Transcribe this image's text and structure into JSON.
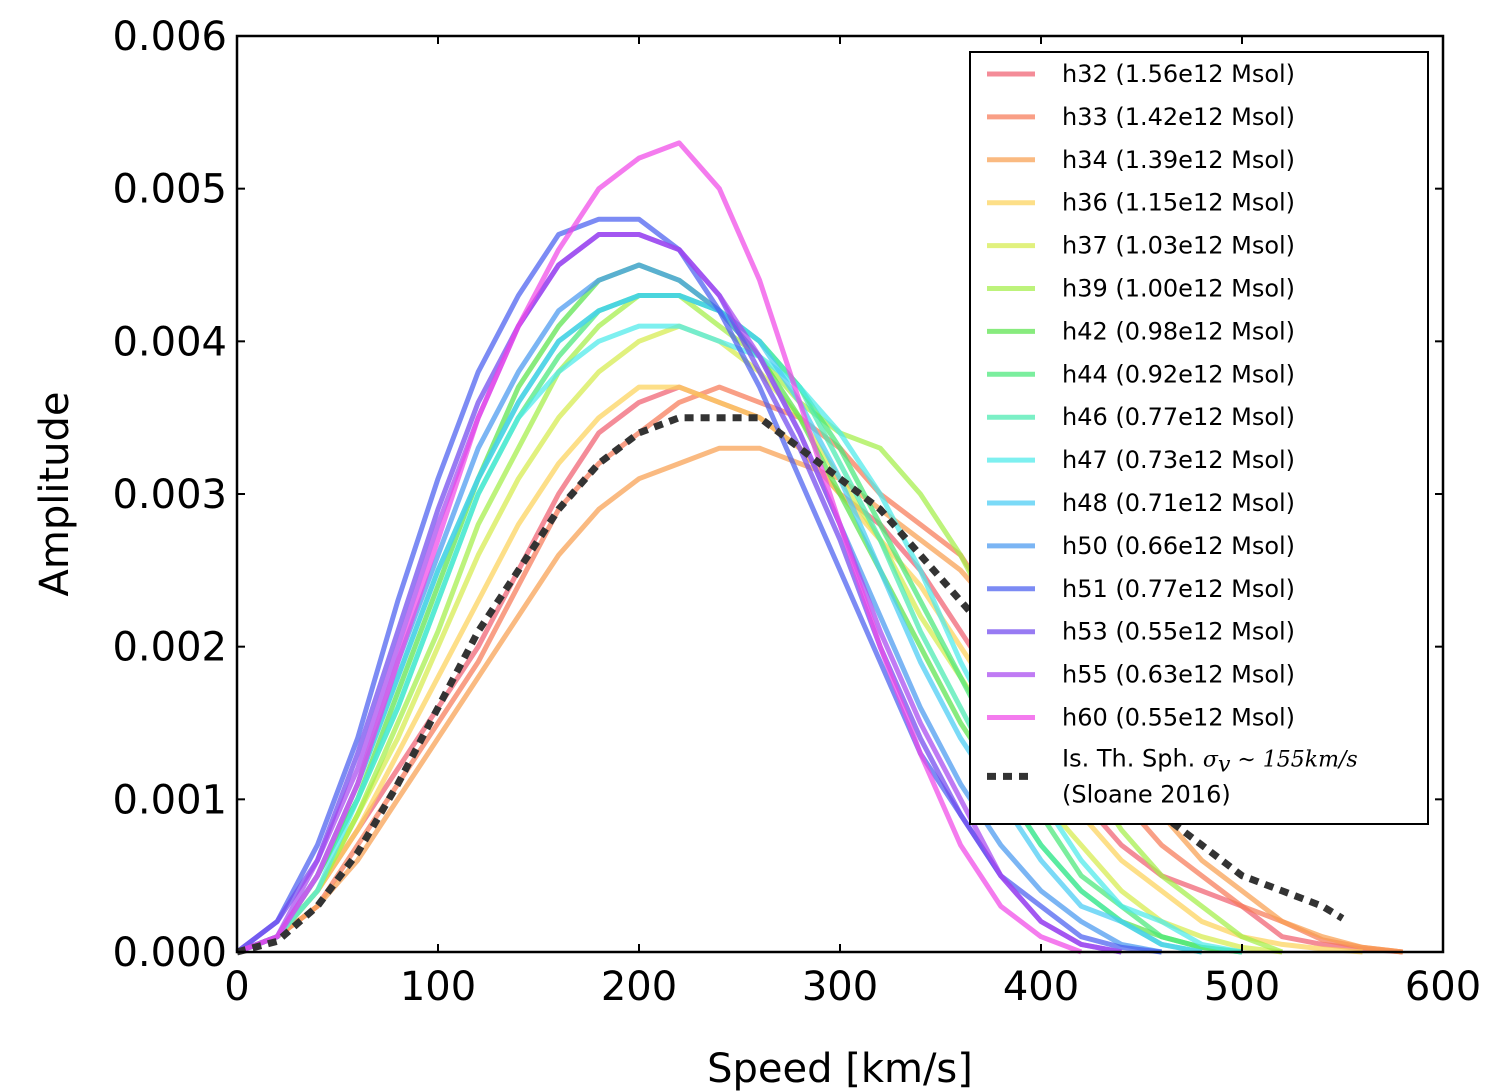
{
  "chart_data": {
    "type": "line",
    "title": "",
    "xlabel": "Speed [km/s]",
    "ylabel": "Amplitude",
    "xlim": [
      0,
      600
    ],
    "ylim": [
      0,
      0.006
    ],
    "xticks": [
      0,
      100,
      200,
      300,
      400,
      500,
      600
    ],
    "xtick_labels": [
      "0",
      "100",
      "200",
      "300",
      "400",
      "500",
      "600"
    ],
    "yticks": [
      0,
      0.001,
      0.002,
      0.003,
      0.004,
      0.005,
      0.006
    ],
    "ytick_labels": [
      "0.000",
      "0.001",
      "0.002",
      "0.003",
      "0.004",
      "0.005",
      "0.006"
    ],
    "grid": false,
    "legend_position": "top-right",
    "series": [
      {
        "name": "h32 (1.56e12 Msol)",
        "color": "#f06070",
        "x": [
          0,
          20,
          40,
          60,
          80,
          100,
          120,
          140,
          160,
          180,
          200,
          220,
          240,
          260,
          280,
          300,
          320,
          340,
          360,
          380,
          400,
          420,
          440,
          460,
          480,
          500,
          520,
          540,
          560,
          580
        ],
        "y": [
          0,
          0.0001,
          0.0004,
          0.0008,
          0.0012,
          0.0016,
          0.002,
          0.0025,
          0.003,
          0.0034,
          0.0036,
          0.0037,
          0.0036,
          0.0035,
          0.0033,
          0.003,
          0.0028,
          0.0025,
          0.0021,
          0.0017,
          0.0013,
          0.001,
          0.0007,
          0.0005,
          0.0004,
          0.0003,
          0.0001,
          5e-05,
          2e-05,
          0
        ]
      },
      {
        "name": "h33 (1.42e12 Msol)",
        "color": "#f77a58",
        "x": [
          0,
          20,
          40,
          60,
          80,
          100,
          120,
          140,
          160,
          180,
          200,
          220,
          240,
          260,
          280,
          300,
          320,
          340,
          360,
          380,
          400,
          420,
          440,
          460,
          480,
          500,
          520,
          540,
          560,
          580
        ],
        "y": [
          0,
          0.0001,
          0.0003,
          0.0007,
          0.0011,
          0.0015,
          0.0019,
          0.0024,
          0.0029,
          0.0032,
          0.0034,
          0.0036,
          0.0037,
          0.0036,
          0.0035,
          0.0033,
          0.003,
          0.0028,
          0.0026,
          0.0022,
          0.0018,
          0.0014,
          0.001,
          0.0007,
          0.0005,
          0.0003,
          0.0002,
          8e-05,
          3e-05,
          0
        ]
      },
      {
        "name": "h34 (1.39e12 Msol)",
        "color": "#f8a050",
        "x": [
          0,
          20,
          40,
          60,
          80,
          100,
          120,
          140,
          160,
          180,
          200,
          220,
          240,
          260,
          280,
          300,
          320,
          340,
          360,
          380,
          400,
          420,
          440,
          460,
          480,
          500,
          520,
          540,
          560,
          580
        ],
        "y": [
          0,
          0.0001,
          0.0003,
          0.0006,
          0.001,
          0.0014,
          0.0018,
          0.0022,
          0.0026,
          0.0029,
          0.0031,
          0.0032,
          0.0033,
          0.0033,
          0.0032,
          0.0031,
          0.0029,
          0.0027,
          0.0025,
          0.0022,
          0.0019,
          0.0015,
          0.0012,
          0.0009,
          0.0006,
          0.0004,
          0.0002,
          0.0001,
          3e-05,
          0
        ]
      },
      {
        "name": "h36 (1.15e12 Msol)",
        "color": "#fcd25a",
        "x": [
          0,
          20,
          40,
          60,
          80,
          100,
          120,
          140,
          160,
          180,
          200,
          220,
          240,
          260,
          280,
          300,
          320,
          340,
          360,
          380,
          400,
          420,
          440,
          460,
          480,
          500,
          520,
          540,
          560
        ],
        "y": [
          0,
          0.0001,
          0.0004,
          0.0008,
          0.0013,
          0.0018,
          0.0023,
          0.0028,
          0.0032,
          0.0035,
          0.0037,
          0.0037,
          0.0036,
          0.0035,
          0.0033,
          0.003,
          0.0027,
          0.0024,
          0.002,
          0.0016,
          0.0012,
          0.0009,
          0.0006,
          0.0004,
          0.0002,
          0.0001,
          5e-05,
          2e-05,
          0
        ]
      },
      {
        "name": "h37 (1.03e12 Msol)",
        "color": "#d6ec4c",
        "x": [
          0,
          20,
          40,
          60,
          80,
          100,
          120,
          140,
          160,
          180,
          200,
          220,
          240,
          260,
          280,
          300,
          320,
          340,
          360,
          380,
          400,
          420,
          440,
          460,
          480,
          500,
          520
        ],
        "y": [
          0,
          0.0001,
          0.0004,
          0.0009,
          0.0014,
          0.002,
          0.0026,
          0.0031,
          0.0035,
          0.0038,
          0.004,
          0.0041,
          0.004,
          0.0038,
          0.0035,
          0.0031,
          0.0027,
          0.0022,
          0.0018,
          0.0014,
          0.001,
          0.0007,
          0.0004,
          0.0002,
          0.0001,
          3e-05,
          0
        ]
      },
      {
        "name": "h39 (1.00e12 Msol)",
        "color": "#a4ee48",
        "x": [
          0,
          20,
          40,
          60,
          80,
          100,
          120,
          140,
          160,
          180,
          200,
          220,
          240,
          260,
          280,
          300,
          320,
          340,
          360,
          380,
          400,
          420,
          440,
          460,
          480,
          500,
          520
        ],
        "y": [
          0,
          0.0001,
          0.0004,
          0.0009,
          0.0015,
          0.0021,
          0.0028,
          0.0033,
          0.0038,
          0.0041,
          0.0043,
          0.0043,
          0.0041,
          0.0039,
          0.0036,
          0.0034,
          0.0033,
          0.003,
          0.0026,
          0.0021,
          0.0016,
          0.0012,
          0.0008,
          0.0005,
          0.0003,
          0.0001,
          0
        ]
      },
      {
        "name": "h42 (0.98e12 Msol)",
        "color": "#5ae34c",
        "x": [
          0,
          20,
          40,
          60,
          80,
          100,
          120,
          140,
          160,
          180,
          200,
          220,
          240,
          260,
          280,
          300,
          320,
          340,
          360,
          380,
          400,
          420,
          440,
          460,
          480,
          500
        ],
        "y": [
          0,
          0.0001,
          0.0005,
          0.001,
          0.0017,
          0.0024,
          0.0031,
          0.0037,
          0.0041,
          0.0044,
          0.0045,
          0.0044,
          0.0042,
          0.0039,
          0.0035,
          0.003,
          0.0025,
          0.002,
          0.0015,
          0.0011,
          0.0007,
          0.0004,
          0.0002,
          0.0001,
          3e-05,
          0
        ]
      },
      {
        "name": "h44 (0.92e12 Msol)",
        "color": "#48e878",
        "x": [
          0,
          20,
          40,
          60,
          80,
          100,
          120,
          140,
          160,
          180,
          200,
          220,
          240,
          260,
          280,
          300,
          320,
          340,
          360,
          380,
          400,
          420,
          440,
          460,
          480,
          500
        ],
        "y": [
          0,
          0.0001,
          0.0005,
          0.001,
          0.0016,
          0.0023,
          0.003,
          0.0035,
          0.0039,
          0.0042,
          0.0043,
          0.0043,
          0.0042,
          0.004,
          0.0037,
          0.0033,
          0.0028,
          0.0023,
          0.0018,
          0.0013,
          0.0009,
          0.0005,
          0.0003,
          0.0001,
          3e-05,
          0
        ]
      },
      {
        "name": "h46 (0.77e12 Msol)",
        "color": "#48eab0",
        "x": [
          0,
          20,
          40,
          60,
          80,
          100,
          120,
          140,
          160,
          180,
          200,
          220,
          240,
          260,
          280,
          300,
          320,
          340,
          360,
          380,
          400,
          420,
          440,
          460,
          480
        ],
        "y": [
          0,
          0.0001,
          0.0005,
          0.0011,
          0.0018,
          0.0025,
          0.0031,
          0.0036,
          0.004,
          0.0042,
          0.0043,
          0.0043,
          0.0042,
          0.004,
          0.0037,
          0.0032,
          0.0027,
          0.0021,
          0.0016,
          0.0011,
          0.0007,
          0.0004,
          0.0002,
          5e-05,
          0
        ]
      },
      {
        "name": "h47 (0.73e12 Msol)",
        "color": "#4ceaea",
        "x": [
          0,
          20,
          40,
          60,
          80,
          100,
          120,
          140,
          160,
          180,
          200,
          220,
          240,
          260,
          280,
          300,
          320,
          340,
          360,
          380,
          400,
          420,
          440,
          460,
          480,
          500
        ],
        "y": [
          0,
          0.0001,
          0.0004,
          0.001,
          0.0016,
          0.0023,
          0.003,
          0.0035,
          0.0038,
          0.004,
          0.0041,
          0.0041,
          0.004,
          0.0039,
          0.0037,
          0.0034,
          0.003,
          0.0025,
          0.0019,
          0.0014,
          0.001,
          0.0006,
          0.0003,
          0.0002,
          5e-05,
          0
        ]
      },
      {
        "name": "h48 (0.71e12 Msol)",
        "color": "#48ccf4",
        "x": [
          0,
          20,
          40,
          60,
          80,
          100,
          120,
          140,
          160,
          180,
          200,
          220,
          240,
          260,
          280,
          300,
          320,
          340,
          360,
          380,
          400,
          420,
          440,
          460,
          480
        ],
        "y": [
          0,
          0.0001,
          0.0005,
          0.0011,
          0.0018,
          0.0025,
          0.0031,
          0.0036,
          0.004,
          0.0042,
          0.0043,
          0.0043,
          0.0042,
          0.004,
          0.0036,
          0.0031,
          0.0025,
          0.0019,
          0.0014,
          0.001,
          0.0006,
          0.0003,
          0.0002,
          5e-05,
          0
        ]
      },
      {
        "name": "h50 (0.66e12 Msol)",
        "color": "#4898f0",
        "x": [
          0,
          20,
          40,
          60,
          80,
          100,
          120,
          140,
          160,
          180,
          200,
          220,
          240,
          260,
          280,
          300,
          320,
          340,
          360,
          380,
          400,
          420,
          440,
          460
        ],
        "y": [
          0,
          0.0001,
          0.0005,
          0.0011,
          0.0019,
          0.0026,
          0.0033,
          0.0038,
          0.0042,
          0.0044,
          0.0045,
          0.0044,
          0.0042,
          0.0039,
          0.0034,
          0.0028,
          0.0022,
          0.0016,
          0.0011,
          0.0007,
          0.0004,
          0.0002,
          5e-05,
          0
        ]
      },
      {
        "name": "h51 (0.77e12 Msol)",
        "color": "#4a5ef0",
        "x": [
          0,
          20,
          40,
          60,
          80,
          100,
          120,
          140,
          160,
          180,
          200,
          220,
          240,
          260,
          280,
          300,
          320,
          340,
          360,
          380,
          400,
          420,
          440,
          460
        ],
        "y": [
          0,
          0.0002,
          0.0007,
          0.0014,
          0.0023,
          0.0031,
          0.0038,
          0.0043,
          0.0047,
          0.0048,
          0.0048,
          0.0046,
          0.0042,
          0.0037,
          0.0031,
          0.0025,
          0.0019,
          0.0013,
          0.0009,
          0.0005,
          0.0003,
          0.0001,
          3e-05,
          0
        ]
      },
      {
        "name": "h53 (0.55e12 Msol)",
        "color": "#7048ee",
        "x": [
          0,
          20,
          40,
          60,
          80,
          100,
          120,
          140,
          160,
          180,
          200,
          220,
          240,
          260,
          280,
          300,
          320,
          340,
          360,
          380,
          400,
          420,
          440
        ],
        "y": [
          0,
          0.0002,
          0.0006,
          0.0013,
          0.0021,
          0.0029,
          0.0036,
          0.0041,
          0.0045,
          0.0047,
          0.0047,
          0.0046,
          0.0043,
          0.0038,
          0.0033,
          0.0027,
          0.002,
          0.0014,
          0.0009,
          0.0005,
          0.0002,
          5e-05,
          0
        ]
      },
      {
        "name": "h55 (0.63e12 Msol)",
        "color": "#a848f0",
        "x": [
          0,
          20,
          40,
          60,
          80,
          100,
          120,
          140,
          160,
          180,
          200,
          220,
          240,
          260,
          280,
          300,
          320,
          340,
          360,
          380,
          400,
          420,
          440
        ],
        "y": [
          0,
          0.0001,
          0.0006,
          0.0012,
          0.002,
          0.0028,
          0.0035,
          0.0041,
          0.0045,
          0.0047,
          0.0047,
          0.0046,
          0.0043,
          0.0039,
          0.0034,
          0.0028,
          0.0021,
          0.0015,
          0.001,
          0.0005,
          0.0002,
          5e-05,
          0
        ]
      },
      {
        "name": "h60 (0.55e12 Msol)",
        "color": "#f048e8",
        "x": [
          0,
          20,
          40,
          60,
          80,
          100,
          120,
          140,
          160,
          180,
          200,
          220,
          240,
          260,
          280,
          300,
          320,
          340,
          360,
          380,
          400,
          420
        ],
        "y": [
          0,
          0.0001,
          0.0005,
          0.0011,
          0.0019,
          0.0027,
          0.0035,
          0.0041,
          0.0046,
          0.005,
          0.0052,
          0.0053,
          0.005,
          0.0044,
          0.0036,
          0.0028,
          0.002,
          0.0013,
          0.0007,
          0.0003,
          0.0001,
          0
        ]
      },
      {
        "name": "Is. Th. Sph. σ_v ~ 155km/s (Sloane 2016)",
        "color": "#333333",
        "dashed": true,
        "x": [
          0,
          20,
          40,
          60,
          80,
          100,
          120,
          140,
          160,
          180,
          200,
          220,
          240,
          260,
          280,
          300,
          320,
          340,
          360,
          380,
          400,
          420,
          440,
          460,
          480,
          500,
          520,
          540,
          550
        ],
        "y": [
          0,
          7e-05,
          0.0003,
          0.00065,
          0.0011,
          0.0016,
          0.0021,
          0.0025,
          0.0029,
          0.0032,
          0.0034,
          0.0035,
          0.0035,
          0.0035,
          0.0033,
          0.0031,
          0.0029,
          0.0026,
          0.0023,
          0.002,
          0.0017,
          0.0014,
          0.0011,
          0.0009,
          0.0007,
          0.0005,
          0.0004,
          0.0003,
          0.00022
        ]
      }
    ],
    "legend": [
      {
        "label": "h32 (1.56e12 Msol)",
        "color": "#f06070"
      },
      {
        "label": "h33 (1.42e12 Msol)",
        "color": "#f77a58"
      },
      {
        "label": "h34 (1.39e12 Msol)",
        "color": "#f8a050"
      },
      {
        "label": "h36 (1.15e12 Msol)",
        "color": "#fcd25a"
      },
      {
        "label": "h37 (1.03e12 Msol)",
        "color": "#d6ec4c"
      },
      {
        "label": "h39 (1.00e12 Msol)",
        "color": "#a4ee48"
      },
      {
        "label": "h42 (0.98e12 Msol)",
        "color": "#5ae34c"
      },
      {
        "label": "h44 (0.92e12 Msol)",
        "color": "#48e878"
      },
      {
        "label": "h46 (0.77e12 Msol)",
        "color": "#48eab0"
      },
      {
        "label": "h47 (0.73e12 Msol)",
        "color": "#4ceaea"
      },
      {
        "label": "h48 (0.71e12 Msol)",
        "color": "#48ccf4"
      },
      {
        "label": "h50 (0.66e12 Msol)",
        "color": "#4898f0"
      },
      {
        "label": "h51 (0.77e12 Msol)",
        "color": "#4a5ef0"
      },
      {
        "label": "h53 (0.55e12 Msol)",
        "color": "#7048ee"
      },
      {
        "label": "h55 (0.63e12 Msol)",
        "color": "#a848f0"
      },
      {
        "label": "h60 (0.55e12 Msol)",
        "color": "#f048e8"
      }
    ],
    "model_legend": {
      "line1_text": "Is. Th. Sph. ",
      "line1_math": "σ",
      "line1_math_sub": "v",
      "line1_math_rest": " ∼ 155km/s",
      "line2": "(Sloane 2016)",
      "color": "#333333"
    }
  }
}
